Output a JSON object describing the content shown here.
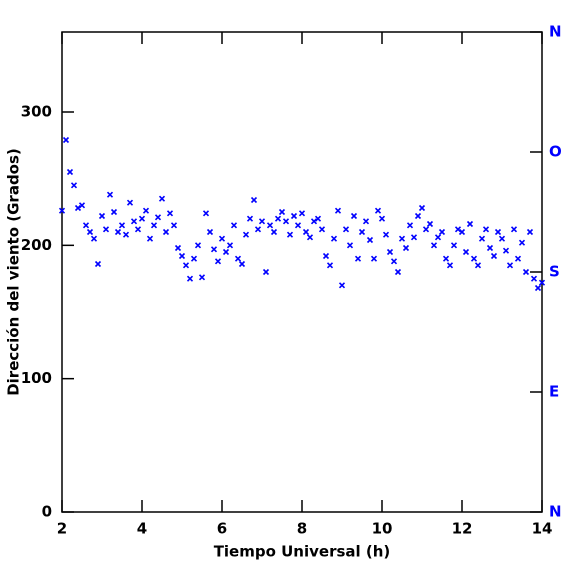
{
  "chart_data": {
    "type": "scatter",
    "x_label": "Tiempo Universal (h)",
    "y_label": "Dirección del viento (Grados)",
    "xlim": [
      2,
      14
    ],
    "xticks": [
      2,
      4,
      6,
      8,
      10,
      12,
      14
    ],
    "ylim": [
      0,
      360
    ],
    "yticks": [
      0,
      100,
      200,
      300
    ],
    "y2lim": [
      0,
      360
    ],
    "y2ticks": [
      {
        "value": 0,
        "label": "N"
      },
      {
        "value": 90,
        "label": "E"
      },
      {
        "value": 180,
        "label": "S"
      },
      {
        "value": 270,
        "label": "O"
      },
      {
        "value": 360,
        "label": "N"
      }
    ],
    "y2color": "#0000ff",
    "series": [
      {
        "name": "Dirección",
        "color": "#0000ff",
        "x": [
          2.0,
          2.1,
          2.2,
          2.3,
          2.4,
          2.5,
          2.6,
          2.7,
          2.8,
          2.9,
          3.0,
          3.1,
          3.2,
          3.3,
          3.4,
          3.5,
          3.6,
          3.7,
          3.8,
          3.9,
          4.0,
          4.1,
          4.2,
          4.3,
          4.4,
          4.5,
          4.6,
          4.7,
          4.8,
          4.9,
          5.0,
          5.1,
          5.2,
          5.3,
          5.4,
          5.5,
          5.6,
          5.7,
          5.8,
          5.9,
          6.0,
          6.1,
          6.2,
          6.3,
          6.4,
          6.5,
          6.6,
          6.7,
          6.8,
          6.9,
          7.0,
          7.1,
          7.2,
          7.3,
          7.4,
          7.5,
          7.6,
          7.7,
          7.8,
          7.9,
          8.0,
          8.1,
          8.2,
          8.3,
          8.4,
          8.5,
          8.6,
          8.7,
          8.8,
          8.9,
          9.0,
          9.1,
          9.2,
          9.3,
          9.4,
          9.5,
          9.6,
          9.7,
          9.8,
          9.9,
          10.0,
          10.1,
          10.2,
          10.3,
          10.4,
          10.5,
          10.6,
          10.7,
          10.8,
          10.9,
          11.0,
          11.1,
          11.2,
          11.3,
          11.4,
          11.5,
          11.6,
          11.7,
          11.8,
          11.9,
          12.0,
          12.1,
          12.2,
          12.3,
          12.4,
          12.5,
          12.6,
          12.7,
          12.8,
          12.9,
          13.0,
          13.1,
          13.2,
          13.3,
          13.4,
          13.5,
          13.6,
          13.7,
          13.8,
          13.9,
          14.0
        ],
        "values": [
          226,
          279,
          255,
          245,
          228,
          230,
          215,
          210,
          205,
          186,
          222,
          212,
          238,
          225,
          210,
          215,
          208,
          232,
          218,
          212,
          220,
          226,
          205,
          215,
          221,
          235,
          210,
          224,
          215,
          198,
          192,
          185,
          175,
          190,
          200,
          176,
          224,
          210,
          197,
          188,
          205,
          195,
          200,
          215,
          190,
          186,
          208,
          220,
          234,
          212,
          218,
          180,
          215,
          210,
          220,
          225,
          218,
          208,
          222,
          215,
          224,
          210,
          206,
          218,
          220,
          212,
          192,
          185,
          205,
          226,
          170,
          212,
          200,
          222,
          190,
          210,
          218,
          204,
          190,
          226,
          220,
          208,
          195,
          188,
          180,
          205,
          198,
          215,
          206,
          222,
          228,
          212,
          216,
          200,
          206,
          210,
          190,
          185,
          200,
          212,
          210,
          195,
          216,
          190,
          185,
          205,
          212,
          198,
          192,
          210,
          205,
          196,
          185,
          212,
          190,
          202,
          180,
          210,
          175,
          168,
          172
        ]
      }
    ]
  }
}
